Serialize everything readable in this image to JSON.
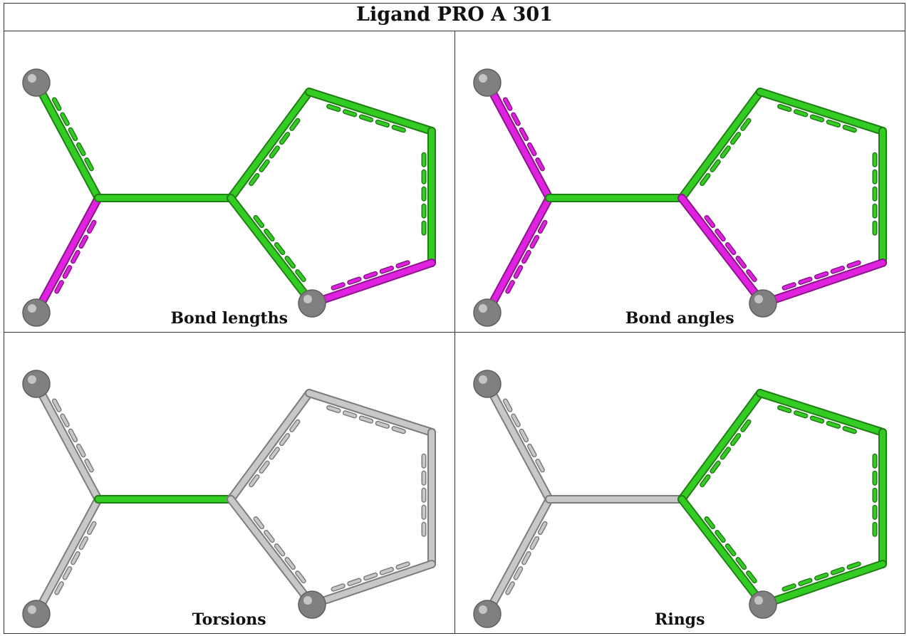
{
  "title": "Ligand PRO A 301",
  "colors": {
    "highlight": "#33cc22",
    "outlier": "#e022e0",
    "neutral": "#c8c8c8",
    "atom": "#808080"
  },
  "panels": [
    {
      "caption": "Bond lengths",
      "chain_bonds": [
        [
          "1",
          "2",
          "green"
        ],
        [
          "2",
          "3",
          "magenta"
        ],
        [
          "2",
          "4",
          "green"
        ]
      ],
      "ring_bonds": [
        [
          "4",
          "5",
          "green"
        ],
        [
          "5",
          "6",
          "green"
        ],
        [
          "6",
          "7",
          "green"
        ],
        [
          "7",
          "8",
          "magenta"
        ],
        [
          "8",
          "4",
          "green"
        ]
      ]
    },
    {
      "caption": "Bond angles",
      "chain_bonds": [
        [
          "1",
          "2",
          "magenta"
        ],
        [
          "2",
          "3",
          "magenta"
        ],
        [
          "2",
          "4",
          "green"
        ]
      ],
      "ring_bonds": [
        [
          "4",
          "5",
          "green"
        ],
        [
          "5",
          "6",
          "green"
        ],
        [
          "6",
          "7",
          "green"
        ],
        [
          "7",
          "8",
          "magenta"
        ],
        [
          "8",
          "4",
          "magenta"
        ]
      ]
    },
    {
      "caption": "Torsions",
      "chain_bonds": [
        [
          "1",
          "2",
          "grey"
        ],
        [
          "2",
          "3",
          "grey"
        ],
        [
          "2",
          "4",
          "green"
        ]
      ],
      "ring_bonds": [
        [
          "4",
          "5",
          "grey"
        ],
        [
          "5",
          "6",
          "grey"
        ],
        [
          "6",
          "7",
          "grey"
        ],
        [
          "7",
          "8",
          "grey"
        ],
        [
          "8",
          "4",
          "grey"
        ]
      ]
    },
    {
      "caption": "Rings",
      "chain_bonds": [
        [
          "1",
          "2",
          "grey"
        ],
        [
          "2",
          "3",
          "grey"
        ],
        [
          "2",
          "4",
          "grey"
        ]
      ],
      "ring_bonds": [
        [
          "4",
          "5",
          "green"
        ],
        [
          "5",
          "6",
          "green"
        ],
        [
          "6",
          "7",
          "green"
        ],
        [
          "7",
          "8",
          "green"
        ],
        [
          "8",
          "4",
          "green"
        ]
      ]
    }
  ]
}
